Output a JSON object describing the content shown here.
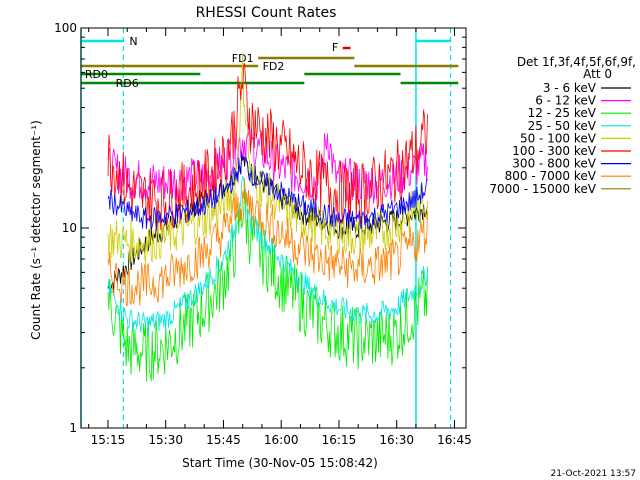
{
  "chart_data": {
    "type": "line",
    "title": "RHESSI Count Rates",
    "xlabel": "Start Time (30-Nov-05 15:08:42)",
    "ylabel": "Count Rate (s⁻¹ detector segment⁻¹)",
    "y_scale": "log",
    "ylim": [
      1,
      100
    ],
    "xlim": [
      "15:08",
      "16:48"
    ],
    "x_ticks": [
      "15:15",
      "15:30",
      "15:45",
      "16:00",
      "16:15",
      "16:30",
      "16:45"
    ],
    "y_ticks": [
      "1",
      "10",
      "100"
    ],
    "legend_header": [
      "Det 1f,3f,4f,5f,6f,9f,",
      "Att 0"
    ],
    "legend_position": "right",
    "timestamp": "21-Oct-2021 13:57",
    "night_markers": [
      {
        "start": "15:08",
        "end": "15:19",
        "label": "N",
        "color": "#00e5e5"
      },
      {
        "start": "16:35",
        "end": "16:44",
        "label": "",
        "color": "#00e5e5"
      }
    ],
    "flags": [
      {
        "label": "F",
        "color": "#dd0000",
        "segments": [
          [
            "16:16",
            "16:18"
          ]
        ]
      },
      {
        "label": "FD1",
        "color": "#8b7b00",
        "segments": [
          [
            "15:54",
            "16:19"
          ]
        ]
      },
      {
        "label": "FD2",
        "color": "#8b7b00",
        "segments": [
          [
            "15:08",
            "15:54"
          ],
          [
            "16:19",
            "16:46"
          ]
        ]
      },
      {
        "label": "RD0",
        "color": "#008800",
        "segments": [
          [
            "15:08",
            "15:39"
          ],
          [
            "16:06",
            "16:31"
          ]
        ]
      },
      {
        "label": "RD6",
        "color": "#008800",
        "segments": [
          [
            "15:08",
            "15:39"
          ],
          [
            "15:39",
            "16:06"
          ],
          [
            "16:31",
            "16:46"
          ]
        ]
      }
    ],
    "series": [
      {
        "name": "3 - 6 keV",
        "color": "#000000",
        "points": [
          [
            "15:15",
            5
          ],
          [
            "15:20",
            6.5
          ],
          [
            "15:25",
            8.5
          ],
          [
            "15:30",
            10
          ],
          [
            "15:35",
            12
          ],
          [
            "15:40",
            14
          ],
          [
            "15:45",
            16
          ],
          [
            "15:48",
            19
          ],
          [
            "15:50",
            22
          ],
          [
            "15:52",
            19
          ],
          [
            "15:55",
            17
          ],
          [
            "16:00",
            14
          ],
          [
            "16:05",
            12
          ],
          [
            "16:10",
            11
          ],
          [
            "16:15",
            10
          ],
          [
            "16:20",
            10
          ],
          [
            "16:25",
            10.5
          ],
          [
            "16:30",
            11
          ],
          [
            "16:35",
            12
          ],
          [
            "16:38",
            13
          ]
        ]
      },
      {
        "name": "6 - 12 keV",
        "color": "#ff00ff",
        "points": [
          [
            "15:15",
            20
          ],
          [
            "15:20",
            18
          ],
          [
            "15:25",
            17
          ],
          [
            "15:30",
            17
          ],
          [
            "15:35",
            17.5
          ],
          [
            "15:40",
            18
          ],
          [
            "15:45",
            21
          ],
          [
            "15:48",
            25
          ],
          [
            "15:50",
            28
          ],
          [
            "15:52",
            26
          ],
          [
            "15:55",
            24
          ],
          [
            "16:00",
            20
          ],
          [
            "16:05",
            18
          ],
          [
            "16:10",
            17
          ],
          [
            "16:12",
            30
          ],
          [
            "16:14",
            18
          ],
          [
            "16:20",
            17
          ],
          [
            "16:25",
            17
          ],
          [
            "16:30",
            18
          ],
          [
            "16:35",
            20
          ],
          [
            "16:38",
            22
          ]
        ]
      },
      {
        "name": "12 - 25 keV",
        "color": "#00ee00",
        "points": [
          [
            "15:15",
            4.5
          ],
          [
            "15:20",
            2.5
          ],
          [
            "15:25",
            2.4
          ],
          [
            "15:30",
            2.6
          ],
          [
            "15:35",
            3.2
          ],
          [
            "15:40",
            4
          ],
          [
            "15:45",
            5.5
          ],
          [
            "15:48",
            8
          ],
          [
            "15:50",
            13
          ],
          [
            "15:52",
            9
          ],
          [
            "15:55",
            7.5
          ],
          [
            "16:00",
            5.5
          ],
          [
            "16:05",
            4.3
          ],
          [
            "16:10",
            3.5
          ],
          [
            "16:15",
            3
          ],
          [
            "16:20",
            2.8
          ],
          [
            "16:25",
            2.8
          ],
          [
            "16:30",
            3
          ],
          [
            "16:35",
            4
          ],
          [
            "16:38",
            4.5
          ]
        ]
      },
      {
        "name": "25 - 50 keV",
        "color": "#00e5e5",
        "points": [
          [
            "15:15",
            5
          ],
          [
            "15:20",
            3.5
          ],
          [
            "15:25",
            3.3
          ],
          [
            "15:30",
            3.5
          ],
          [
            "15:35",
            4.2
          ],
          [
            "15:40",
            5.2
          ],
          [
            "15:45",
            7
          ],
          [
            "15:48",
            10
          ],
          [
            "15:50",
            16
          ],
          [
            "15:52",
            11
          ],
          [
            "15:55",
            9
          ],
          [
            "16:00",
            7
          ],
          [
            "16:05",
            5.5
          ],
          [
            "16:10",
            4.5
          ],
          [
            "16:15",
            4
          ],
          [
            "16:20",
            3.7
          ],
          [
            "16:25",
            3.7
          ],
          [
            "16:30",
            4
          ],
          [
            "16:35",
            5
          ],
          [
            "16:38",
            6
          ]
        ]
      },
      {
        "name": "50 - 100 keV",
        "color": "#cccc00",
        "points": [
          [
            "15:15",
            9
          ],
          [
            "15:20",
            8.5
          ],
          [
            "15:25",
            8.5
          ],
          [
            "15:30",
            9
          ],
          [
            "15:35",
            10
          ],
          [
            "15:40",
            11
          ],
          [
            "15:45",
            13
          ],
          [
            "15:48",
            16
          ],
          [
            "15:50",
            60
          ],
          [
            "15:52",
            18
          ],
          [
            "15:55",
            16
          ],
          [
            "16:00",
            13
          ],
          [
            "16:05",
            11
          ],
          [
            "16:10",
            10
          ],
          [
            "16:15",
            9.5
          ],
          [
            "16:20",
            9
          ],
          [
            "16:25",
            9.5
          ],
          [
            "16:30",
            10.5
          ],
          [
            "16:35",
            12.5
          ],
          [
            "16:38",
            14
          ]
        ]
      },
      {
        "name": "100 - 300 keV",
        "color": "#ff0000",
        "points": [
          [
            "15:15",
            23
          ],
          [
            "15:20",
            16
          ],
          [
            "15:25",
            14
          ],
          [
            "15:30",
            14
          ],
          [
            "15:35",
            15
          ],
          [
            "15:40",
            17
          ],
          [
            "15:45",
            22
          ],
          [
            "15:48",
            33
          ],
          [
            "15:50",
            55
          ],
          [
            "15:52",
            35
          ],
          [
            "15:55",
            30
          ],
          [
            "16:00",
            25
          ],
          [
            "16:05",
            20
          ],
          [
            "16:10",
            17
          ],
          [
            "16:15",
            15
          ],
          [
            "16:20",
            15
          ],
          [
            "16:25",
            16.5
          ],
          [
            "16:30",
            19
          ],
          [
            "16:35",
            24
          ],
          [
            "16:38",
            30
          ]
        ]
      },
      {
        "name": "300 - 800 keV",
        "color": "#0000ff",
        "points": [
          [
            "15:15",
            14
          ],
          [
            "15:20",
            12
          ],
          [
            "15:25",
            11
          ],
          [
            "15:30",
            11.5
          ],
          [
            "15:35",
            12
          ],
          [
            "15:40",
            13
          ],
          [
            "15:45",
            15
          ],
          [
            "15:48",
            18
          ],
          [
            "15:50",
            22
          ],
          [
            "15:52",
            19
          ],
          [
            "15:55",
            17
          ],
          [
            "16:00",
            15
          ],
          [
            "16:05",
            13
          ],
          [
            "16:10",
            12
          ],
          [
            "16:15",
            11
          ],
          [
            "16:20",
            11
          ],
          [
            "16:25",
            11.5
          ],
          [
            "16:30",
            12.5
          ],
          [
            "16:35",
            14
          ],
          [
            "16:38",
            16
          ]
        ]
      },
      {
        "name": "800 - 7000 keV",
        "color": "#ff7f00",
        "points": [
          [
            "15:15",
            6
          ],
          [
            "15:20",
            5.2
          ],
          [
            "15:25",
            5.2
          ],
          [
            "15:30",
            5.6
          ],
          [
            "15:35",
            6.5
          ],
          [
            "15:40",
            7.5
          ],
          [
            "15:45",
            9.5
          ],
          [
            "15:48",
            12
          ],
          [
            "15:50",
            14
          ],
          [
            "15:52",
            13
          ],
          [
            "15:55",
            11.5
          ],
          [
            "16:00",
            9.5
          ],
          [
            "16:05",
            8
          ],
          [
            "16:10",
            7
          ],
          [
            "16:15",
            6.5
          ],
          [
            "16:20",
            6.2
          ],
          [
            "16:25",
            6.5
          ],
          [
            "16:30",
            7
          ],
          [
            "16:35",
            8.5
          ],
          [
            "16:38",
            10
          ]
        ]
      },
      {
        "name": "7000 - 15000 keV",
        "color": "#8b7b00",
        "points": []
      }
    ]
  }
}
